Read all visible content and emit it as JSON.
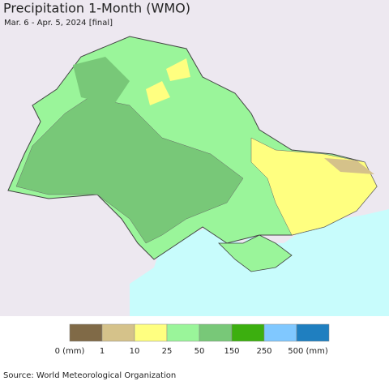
{
  "header": {
    "title": "Precipitation 1-Month (WMO)",
    "subtitle": "Mar. 6 - Apr. 5, 2024 [final]"
  },
  "legend": {
    "colors": [
      "#806a47",
      "#d5c28a",
      "#ffff80",
      "#9af59a",
      "#78c878",
      "#3caf0f",
      "#80c8ff",
      "#1f7fc0"
    ],
    "labels": [
      "0 (mm)",
      "1",
      "10",
      "25",
      "50",
      "150",
      "250",
      "500 (mm)"
    ]
  },
  "footer": {
    "source": "Source: World Meteorological Organization"
  }
}
